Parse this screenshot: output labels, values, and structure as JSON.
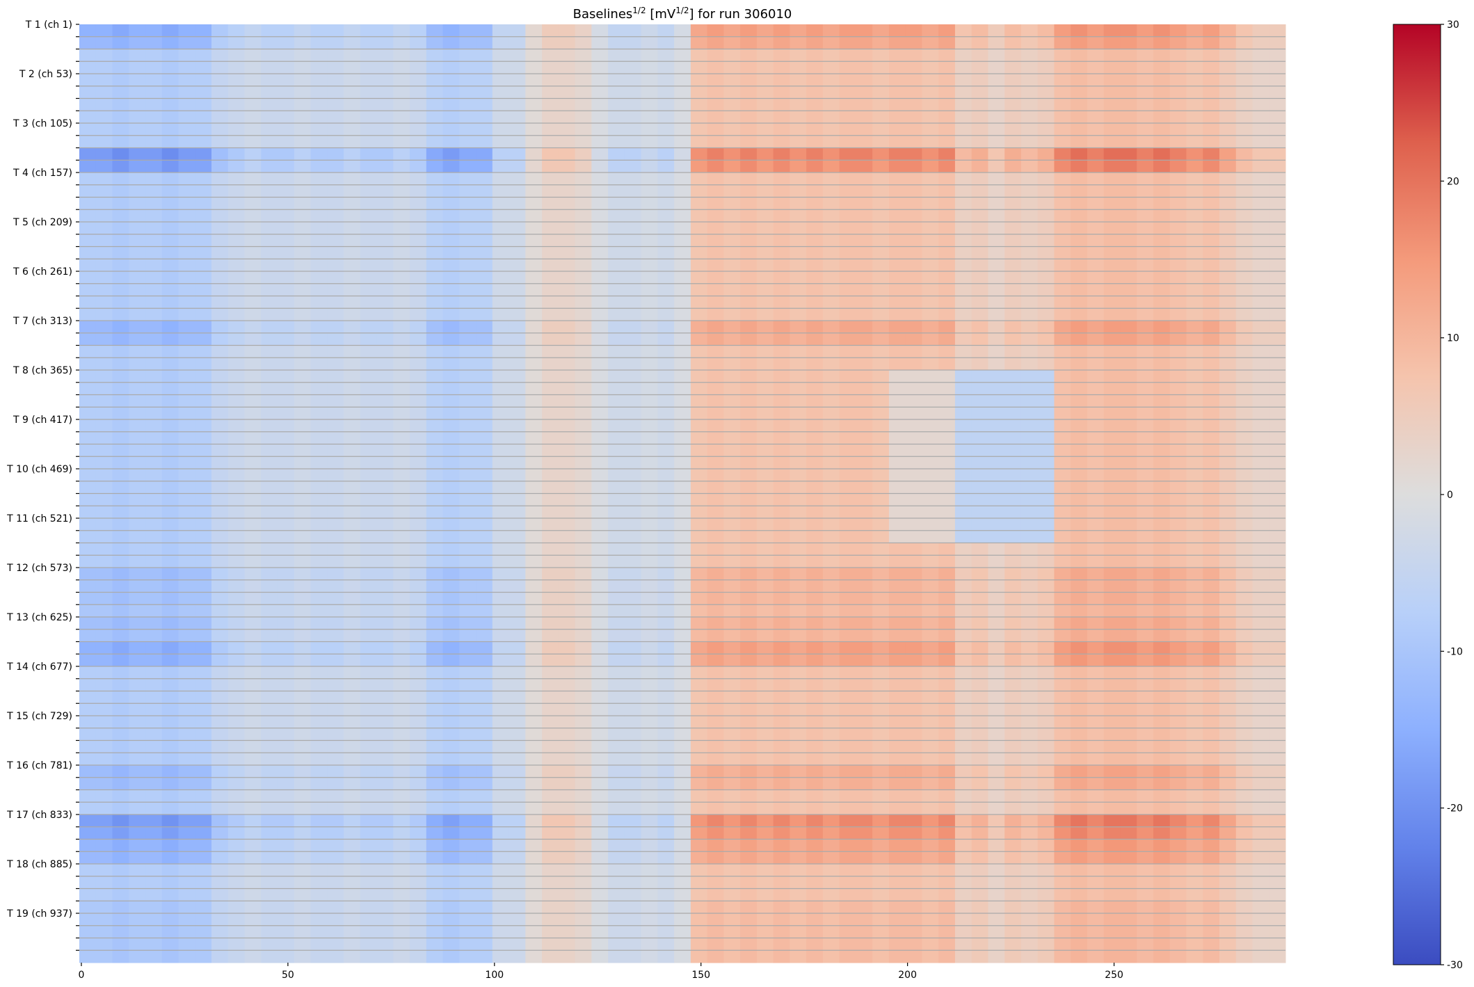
{
  "chart_data": {
    "type": "heatmap",
    "title_segments": [
      {
        "text": "Baselines",
        "sup": false
      },
      {
        "text": "1/2",
        "sup": true
      },
      {
        "text": " [mV",
        "sup": false
      },
      {
        "text": "1/2",
        "sup": true
      },
      {
        "text": "] for run 306010",
        "sup": false
      }
    ],
    "n_columns": 292,
    "n_channels": 988,
    "channels_per_module": 13,
    "column_bin_width": 4,
    "xticks": [
      0,
      50,
      100,
      150,
      200,
      250
    ],
    "yticks": [
      {
        "label": "T 1 (ch 1)",
        "channel": 1
      },
      {
        "label": "T 2 (ch 53)",
        "channel": 53
      },
      {
        "label": "T 3 (ch 105)",
        "channel": 105
      },
      {
        "label": "T 4 (ch 157)",
        "channel": 157
      },
      {
        "label": "T 5 (ch 209)",
        "channel": 209
      },
      {
        "label": "T 6 (ch 261)",
        "channel": 261
      },
      {
        "label": "T 7 (ch 313)",
        "channel": 313
      },
      {
        "label": "T 8 (ch 365)",
        "channel": 365
      },
      {
        "label": "T 9 (ch 417)",
        "channel": 417
      },
      {
        "label": "T 10 (ch 469)",
        "channel": 469
      },
      {
        "label": "T 11 (ch 521)",
        "channel": 521
      },
      {
        "label": "T 12 (ch 573)",
        "channel": 573
      },
      {
        "label": "T 13 (ch 625)",
        "channel": 625
      },
      {
        "label": "T 14 (ch 677)",
        "channel": 677
      },
      {
        "label": "T 15 (ch 729)",
        "channel": 729
      },
      {
        "label": "T 16 (ch 781)",
        "channel": 781
      },
      {
        "label": "T 17 (ch 833)",
        "channel": 833
      },
      {
        "label": "T 18 (ch 885)",
        "channel": 885
      },
      {
        "label": "T 19 (ch 937)",
        "channel": 937
      }
    ],
    "column_profile": [
      -8,
      -8,
      -9,
      -8,
      -8,
      -9,
      -8,
      -8,
      -5,
      -4,
      -3,
      -4,
      -4,
      -3,
      -4,
      -4,
      -3,
      -4,
      -4,
      -3,
      -4,
      -7,
      -8,
      -7,
      -7,
      -3,
      -3,
      1,
      3,
      3,
      2,
      -1,
      -3,
      -3,
      -2,
      -3,
      -1,
      7,
      8,
      7,
      8,
      7,
      8,
      7,
      8,
      7,
      8,
      8,
      7,
      8,
      8,
      7,
      8,
      4,
      5,
      3,
      5,
      4,
      5,
      8,
      9,
      8,
      9,
      9,
      8,
      9,
      8,
      7,
      8,
      6,
      4,
      3,
      3
    ],
    "module_gain": {
      "0": 1.8,
      "1": 1.6,
      "10": 2.3,
      "11": 2.1,
      "24": 1.6,
      "25": 1.5,
      "44": 1.4,
      "45": 1.3,
      "46": 1.3,
      "47": 1.2,
      "48": 1.4,
      "49": 1.3,
      "50": 1.8,
      "51": 1.7,
      "60": 1.5,
      "61": 1.4,
      "64": 2.2,
      "65": 2.0,
      "66": 1.7,
      "67": 1.6,
      "71": 1.15,
      "72": 1.15,
      "73": 1.15,
      "74": 1.15,
      "75": 1.15
    },
    "default_gain": 1.0,
    "anomalies": [
      {
        "modules": [
          28,
          41
        ],
        "column_bins": [
          53,
          58
        ],
        "value": -6
      },
      {
        "modules": [
          28,
          41
        ],
        "column_bins": [
          49,
          52
        ],
        "value": 2
      }
    ],
    "colorbar": {
      "min": -30,
      "max": 30,
      "ticks": [
        30,
        20,
        10,
        0,
        -10,
        -20,
        -30
      ],
      "colormap": "coolwarm"
    },
    "colormap_stops": [
      "#3b4cc0",
      "#6282ea",
      "#8db0fe",
      "#b8d0f9",
      "#dddddd",
      "#f5c4ad",
      "#f49a7b",
      "#de604d",
      "#b40426"
    ],
    "separator_color": "#aaaaaa"
  }
}
